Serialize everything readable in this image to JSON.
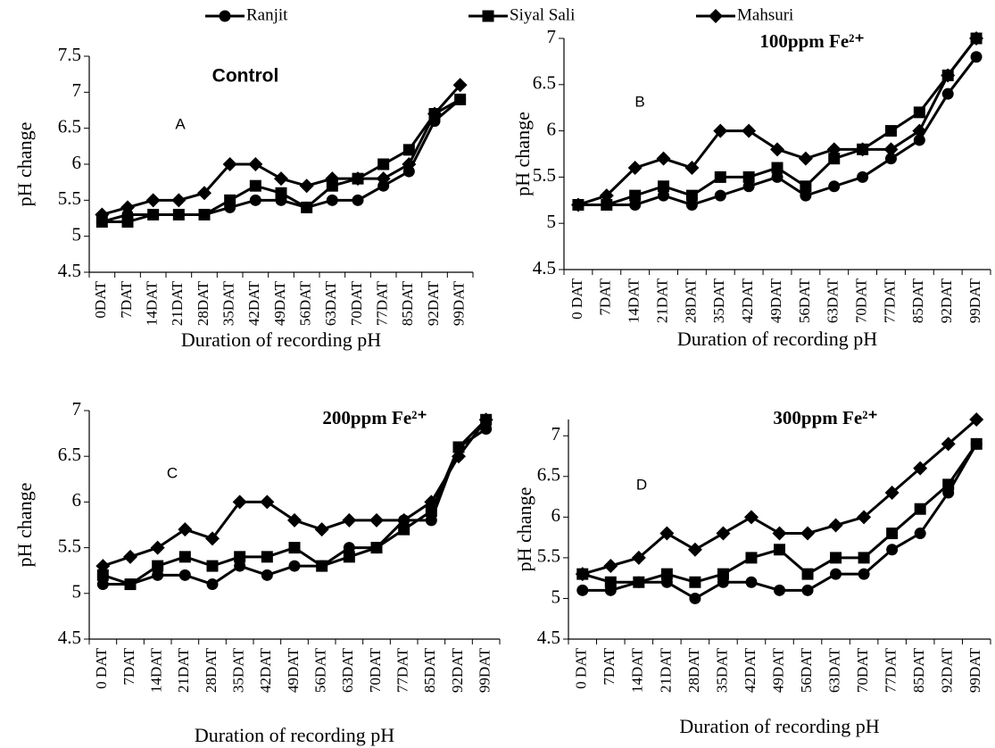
{
  "chart_data": [
    {
      "type": "line",
      "title": "Control",
      "annotation": "A",
      "y_label": "pH change",
      "x_label": "Duration of recording pH",
      "categories": [
        "0DAT",
        "7DAT",
        "14DAT",
        "21DAT",
        "28DAT",
        "35DAT",
        "42DAT",
        "49DAT",
        "56DAT",
        "63DAT",
        "70DAT",
        "77DAT",
        "85DAT",
        "92DAT",
        "99DAT"
      ],
      "ylim": [
        4.5,
        7.5
      ],
      "yticks": [
        4.5,
        5,
        5.5,
        6,
        6.5,
        7,
        7.5
      ],
      "grid": false,
      "series": [
        {
          "name": "Ranjit",
          "color": "#000000",
          "marker": "circle",
          "values": [
            5.2,
            5.3,
            5.3,
            5.3,
            5.3,
            5.4,
            5.5,
            5.5,
            5.4,
            5.5,
            5.5,
            5.7,
            5.9,
            6.6,
            6.9
          ]
        },
        {
          "name": "Siyal Sali",
          "color": "#000000",
          "marker": "square",
          "values": [
            5.2,
            5.2,
            5.3,
            5.3,
            5.3,
            5.5,
            5.7,
            5.6,
            5.4,
            5.7,
            5.8,
            6.0,
            6.2,
            6.7,
            6.9
          ]
        },
        {
          "name": "Mahsuri",
          "color": "#000000",
          "marker": "diamond",
          "values": [
            5.3,
            5.4,
            5.5,
            5.5,
            5.6,
            6.0,
            6.0,
            5.8,
            5.7,
            5.8,
            5.8,
            5.8,
            6.0,
            6.7,
            7.1
          ]
        }
      ]
    },
    {
      "type": "line",
      "title": "100ppm Fe²⁺",
      "annotation": "B",
      "y_label": "pH change",
      "x_label": "Duration of recording pH",
      "categories": [
        "0 DAT",
        "7DAT",
        "14DAT",
        "21DAT",
        "28DAT",
        "35DAT",
        "42DAT",
        "49DAT",
        "56DAT",
        "63DAT",
        "70DAT",
        "77DAT",
        "85DAT",
        "92DAT",
        "99DAT"
      ],
      "ylim": [
        4.5,
        7
      ],
      "yticks": [
        4.5,
        5,
        5.5,
        6,
        6.5,
        7
      ],
      "grid": false,
      "series": [
        {
          "name": "Ranjit",
          "color": "#000000",
          "marker": "circle",
          "values": [
            5.2,
            5.2,
            5.2,
            5.3,
            5.2,
            5.3,
            5.4,
            5.5,
            5.3,
            5.4,
            5.5,
            5.7,
            5.9,
            6.4,
            6.8
          ]
        },
        {
          "name": "Siyal Sali",
          "color": "#000000",
          "marker": "square",
          "values": [
            5.2,
            5.2,
            5.3,
            5.4,
            5.3,
            5.5,
            5.5,
            5.6,
            5.4,
            5.7,
            5.8,
            6.0,
            6.2,
            6.6,
            7.0
          ]
        },
        {
          "name": "Mahsuri",
          "color": "#000000",
          "marker": "diamond",
          "values": [
            5.2,
            5.3,
            5.6,
            5.7,
            5.6,
            6.0,
            6.0,
            5.8,
            5.7,
            5.8,
            5.8,
            5.8,
            6.0,
            6.6,
            7.0
          ]
        }
      ]
    },
    {
      "type": "line",
      "title": "200ppm Fe²⁺",
      "annotation": "C",
      "y_label": "pH change",
      "x_label": "Duration of recording pH",
      "categories": [
        "0 DAT",
        "7DAT",
        "14DAT",
        "21DAT",
        "28DAT",
        "35DAT",
        "42DAT",
        "49DAT",
        "56DAT",
        "63DAT",
        "70DAT",
        "77DAT",
        "85DAT",
        "92DAT",
        "99DAT"
      ],
      "ylim": [
        4.5,
        7
      ],
      "yticks": [
        4.5,
        5,
        5.5,
        6,
        6.5,
        7
      ],
      "grid": false,
      "series": [
        {
          "name": "Ranjit",
          "color": "#000000",
          "marker": "circle",
          "values": [
            5.1,
            5.1,
            5.2,
            5.2,
            5.1,
            5.3,
            5.2,
            5.3,
            5.3,
            5.5,
            5.5,
            5.8,
            5.8,
            6.6,
            6.8
          ]
        },
        {
          "name": "Siyal Sali",
          "color": "#000000",
          "marker": "square",
          "values": [
            5.2,
            5.1,
            5.3,
            5.4,
            5.3,
            5.4,
            5.4,
            5.5,
            5.3,
            5.4,
            5.5,
            5.7,
            5.9,
            6.6,
            6.9
          ]
        },
        {
          "name": "Mahsuri",
          "color": "#000000",
          "marker": "diamond",
          "values": [
            5.3,
            5.4,
            5.5,
            5.7,
            5.6,
            6.0,
            6.0,
            5.8,
            5.7,
            5.8,
            5.8,
            5.8,
            6.0,
            6.5,
            6.9
          ]
        }
      ]
    },
    {
      "type": "line",
      "title": "300ppm Fe²⁺",
      "annotation": "D",
      "y_label": "pH change",
      "x_label": "Duration of recording pH",
      "categories": [
        "0 DAT",
        "7DAT",
        "14DAT",
        "21DAT",
        "28DAT",
        "35DAT",
        "42DAT",
        "49DAT",
        "56DAT",
        "63DAT",
        "70DAT",
        "77DAT",
        "85DAT",
        "92DAT",
        "99DAT"
      ],
      "ylim": [
        4.5,
        7.2
      ],
      "yticks": [
        4.5,
        5,
        5.5,
        6,
        6.5,
        7
      ],
      "grid": false,
      "series": [
        {
          "name": "Ranjit",
          "color": "#000000",
          "marker": "circle",
          "values": [
            5.1,
            5.1,
            5.2,
            5.2,
            5.0,
            5.2,
            5.2,
            5.1,
            5.1,
            5.3,
            5.3,
            5.6,
            5.8,
            6.3,
            6.9
          ]
        },
        {
          "name": "Siyal Sali",
          "color": "#000000",
          "marker": "square",
          "values": [
            5.3,
            5.2,
            5.2,
            5.3,
            5.2,
            5.3,
            5.5,
            5.6,
            5.3,
            5.5,
            5.5,
            5.8,
            6.1,
            6.4,
            6.9
          ]
        },
        {
          "name": "Mahsuri",
          "color": "#000000",
          "marker": "diamond",
          "values": [
            5.3,
            5.4,
            5.5,
            5.8,
            5.6,
            5.8,
            6.0,
            5.8,
            5.8,
            5.9,
            6.0,
            6.3,
            6.6,
            6.9,
            7.2
          ]
        }
      ]
    }
  ]
}
